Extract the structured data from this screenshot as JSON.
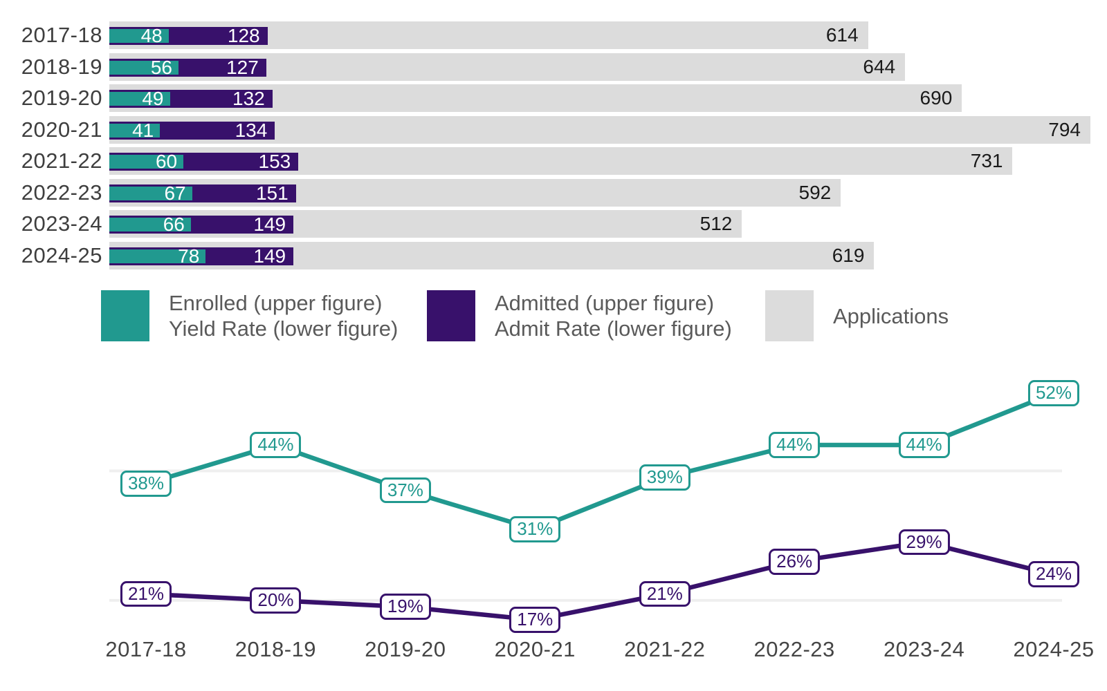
{
  "colors": {
    "teal": "#21998F",
    "purple": "#38116B",
    "gray_bar": "#DCDCDC",
    "gridline": "#EFEFEF",
    "year_label": "#3E3E3E",
    "legend_text": "#5A5A5A",
    "bar_value_dark": "#1A1A1A",
    "bar_value_light": "#FFFFFF",
    "axis_label": "#454545"
  },
  "legend": {
    "items": [
      {
        "swatch": "teal",
        "line1": "Enrolled (upper figure)",
        "line2": "Yield Rate (lower figure)"
      },
      {
        "swatch": "purple",
        "line1": "Admitted (upper figure)",
        "line2": "Admit Rate (lower figure)"
      },
      {
        "swatch": "gray",
        "line1": "Applications",
        "line2": ""
      }
    ]
  },
  "chart_data": [
    {
      "type": "bar",
      "orientation": "horizontal",
      "categories": [
        "2017-18",
        "2018-19",
        "2019-20",
        "2020-21",
        "2021-22",
        "2022-23",
        "2023-24",
        "2024-25"
      ],
      "series": [
        {
          "name": "Applications",
          "color_key": "gray_bar",
          "values": [
            614,
            644,
            690,
            794,
            731,
            592,
            512,
            619
          ]
        },
        {
          "name": "Admitted",
          "color_key": "purple",
          "values": [
            128,
            127,
            132,
            134,
            153,
            151,
            149,
            149
          ]
        },
        {
          "name": "Enrolled",
          "color_key": "teal",
          "values": [
            48,
            56,
            49,
            41,
            60,
            67,
            66,
            78
          ]
        }
      ],
      "xlim": [
        0,
        794
      ],
      "value_labels": "shown at right end of each bar",
      "legend_position": "below"
    },
    {
      "type": "line",
      "x": [
        "2017-18",
        "2018-19",
        "2019-20",
        "2020-21",
        "2021-22",
        "2022-23",
        "2023-24",
        "2024-25"
      ],
      "series": [
        {
          "name": "Yield Rate",
          "color_key": "teal",
          "unit": "%",
          "values": [
            38,
            44,
            37,
            31,
            39,
            44,
            44,
            52
          ]
        },
        {
          "name": "Admit Rate",
          "color_key": "purple",
          "unit": "%",
          "values": [
            21,
            20,
            19,
            17,
            21,
            26,
            29,
            24
          ]
        }
      ],
      "point_labels": [
        "38%",
        "44%",
        "37%",
        "31%",
        "39%",
        "44%",
        "44%",
        "52%",
        "21%",
        "20%",
        "19%",
        "17%",
        "21%",
        "26%",
        "29%",
        "24%"
      ],
      "gridlines_percent": [
        40,
        20
      ],
      "ylim": [
        14,
        56
      ],
      "grid": "two faint horizontal lines only, no axes"
    }
  ]
}
